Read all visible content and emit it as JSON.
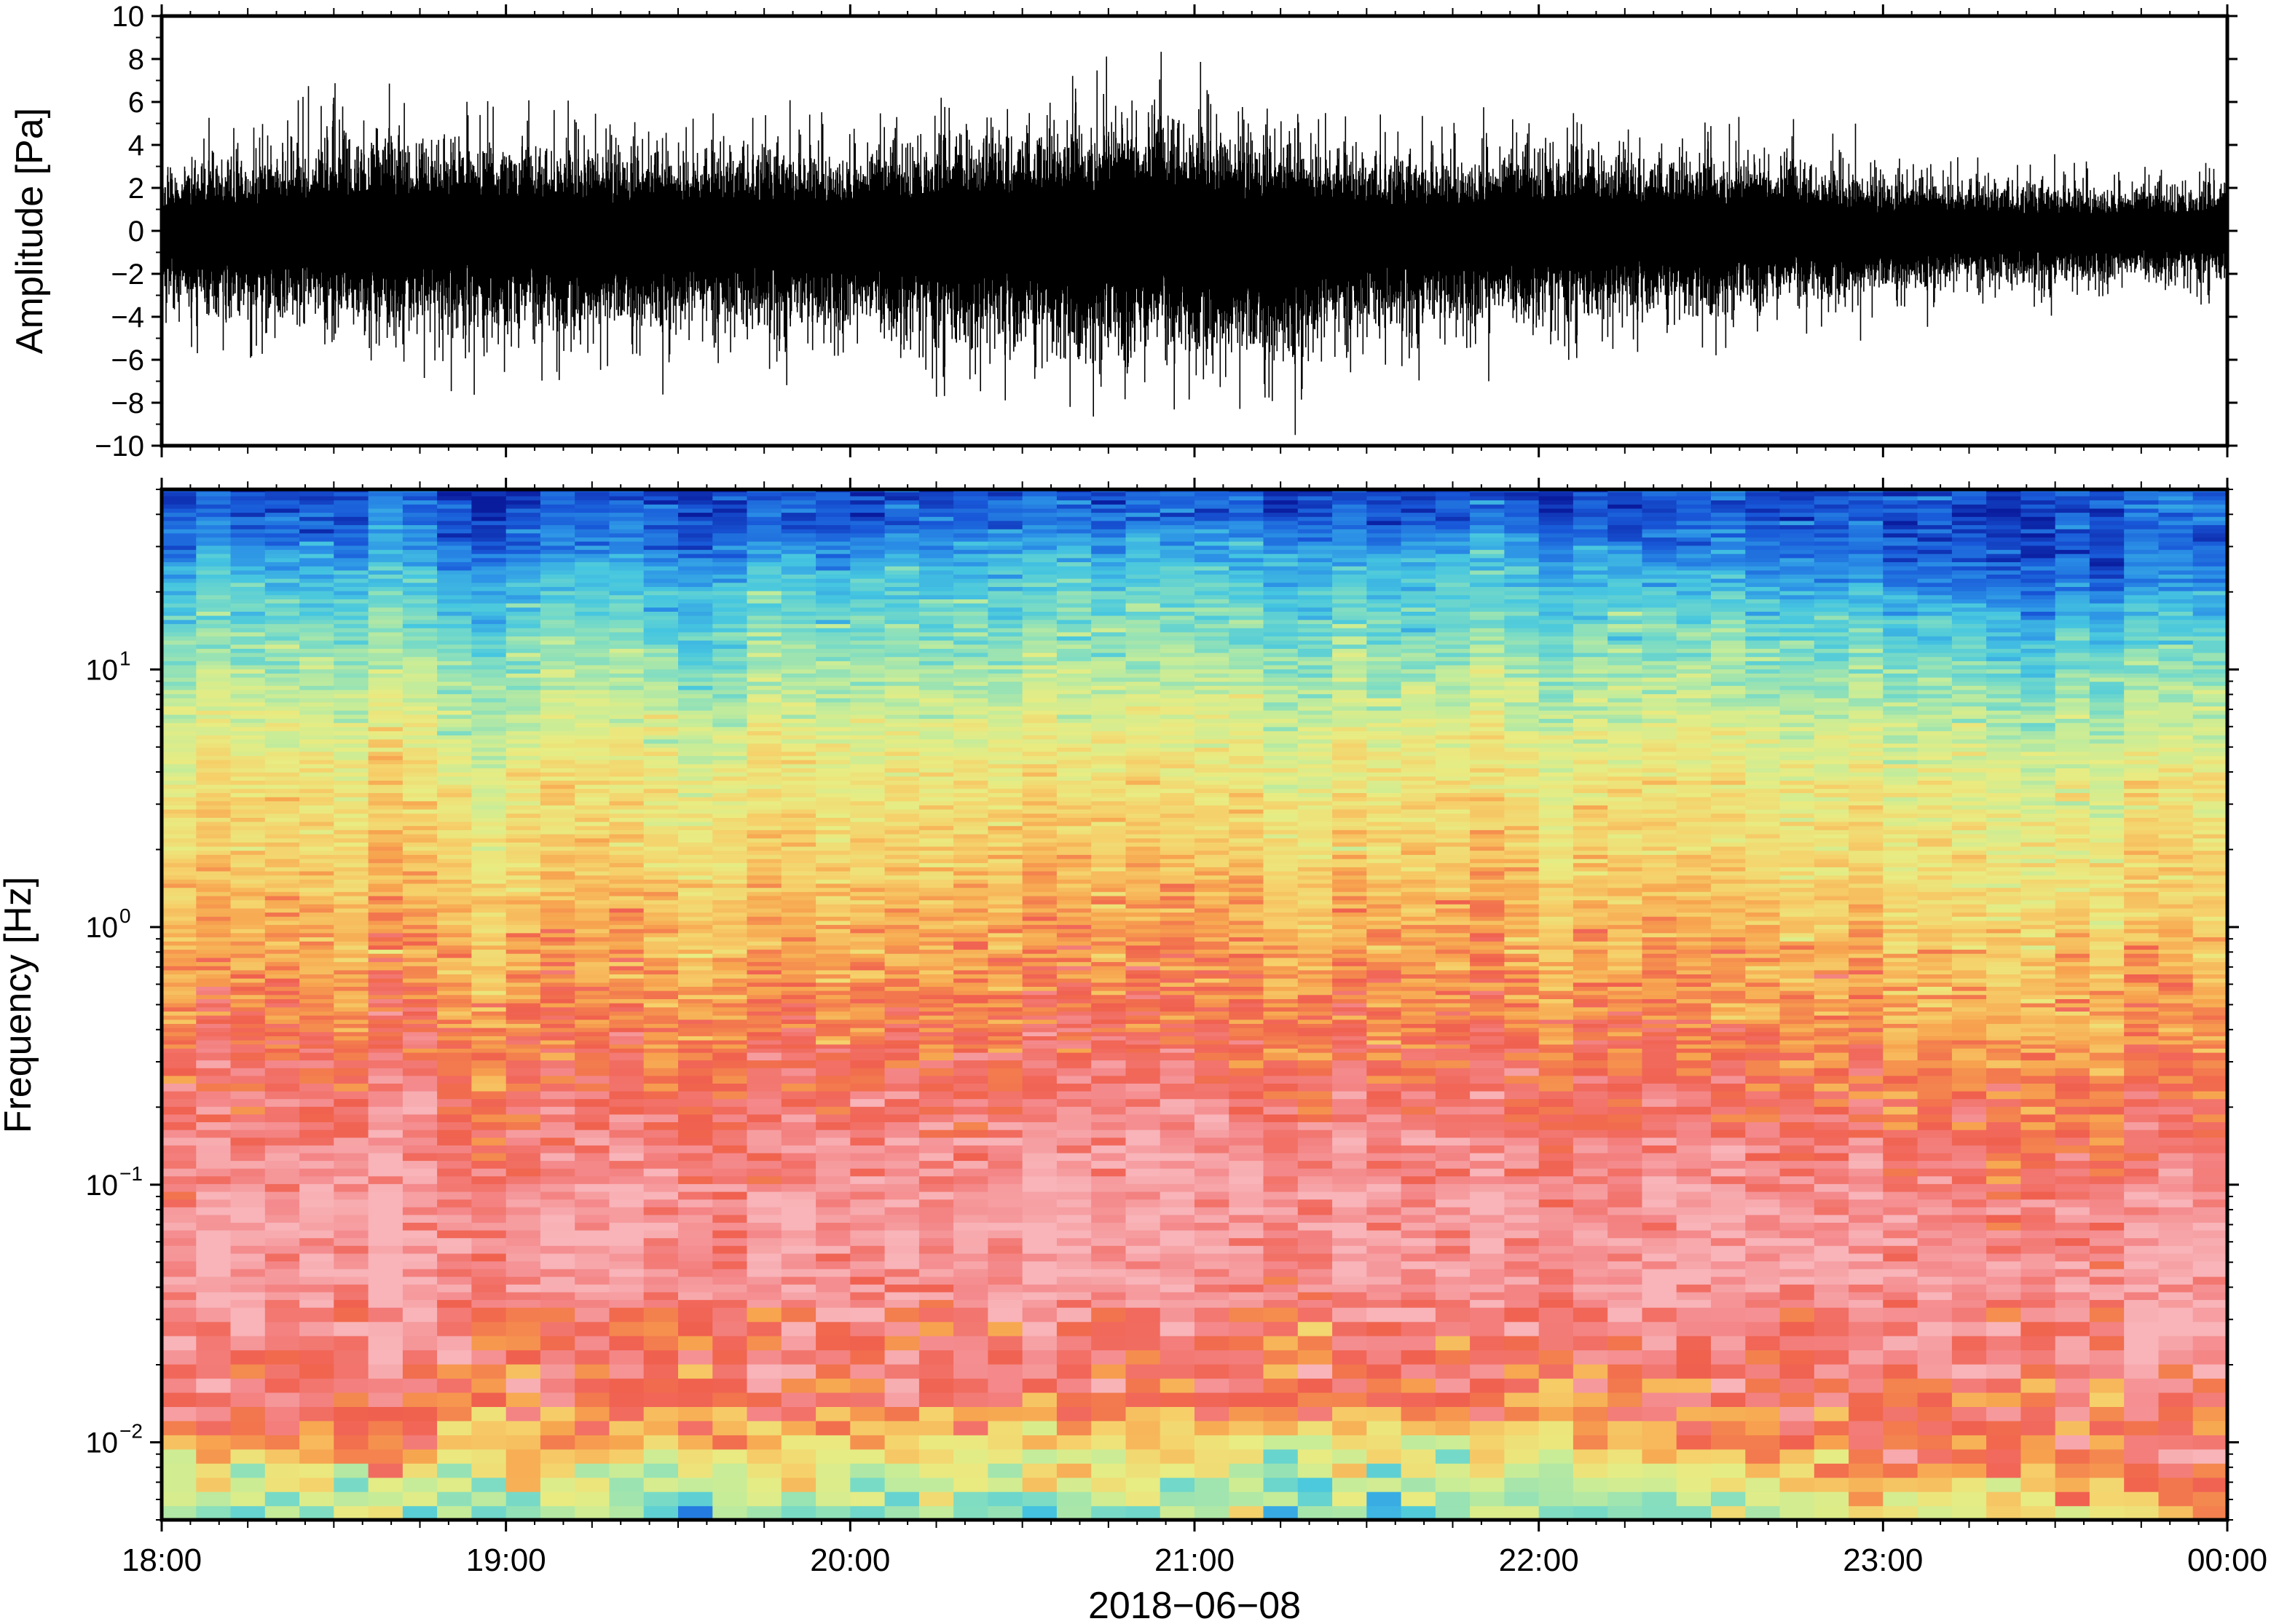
{
  "chart_data": [
    {
      "type": "line",
      "ylabel": "Amplitude [Pa]",
      "ylim": [
        -10,
        10
      ],
      "yticks": [
        10,
        8,
        6,
        4,
        2,
        0,
        -2,
        -4,
        -6,
        -8,
        -10
      ],
      "ytick_labels": [
        "10",
        "8",
        "6",
        "4",
        "2",
        "0",
        "−2",
        "−4",
        "−6",
        "−8",
        "−10"
      ],
      "x_range": [
        "2018-06-08T18:00",
        "2018-06-09T00:00"
      ],
      "grid": false,
      "series": [
        {
          "x": [
            "18:00",
            "18:15",
            "18:30",
            "18:45",
            "19:00",
            "19:15",
            "19:30",
            "19:45",
            "20:00",
            "20:15",
            "20:30",
            "20:45",
            "21:00",
            "21:15",
            "21:30",
            "21:45",
            "22:00",
            "22:15",
            "22:30",
            "22:45",
            "23:00",
            "23:15",
            "23:30",
            "23:45",
            "00:00"
          ],
          "envelope_max": [
            2.5,
            3,
            4,
            3.5,
            3.2,
            3.5,
            3,
            3.5,
            3.2,
            3.5,
            4,
            4.5,
            4.5,
            3.5,
            3,
            3,
            3.2,
            3,
            3,
            2.8,
            2.2,
            2,
            2,
            1.8,
            1.8
          ],
          "envelope_min": [
            -3,
            -3.5,
            -4,
            -4,
            -4.5,
            -4,
            -4,
            -4,
            -4,
            -4.5,
            -5,
            -5.5,
            -5,
            -5.5,
            -4,
            -3.8,
            -3.5,
            -3.5,
            -3.5,
            -3,
            -2.5,
            -2.2,
            -2.2,
            -2,
            -2
          ],
          "peaks_max": [
            5.2,
            5.5,
            5.8,
            5.9,
            5.0,
            4.8
          ],
          "peaks_min": [
            -5.8,
            -5.4,
            -7.3,
            -7.2,
            -5.8,
            -5.7
          ],
          "color": "#000000"
        }
      ]
    },
    {
      "type": "heatmap",
      "ylabel": "Frequency [Hz]",
      "xlabel": "2018−06−08",
      "y_scale": "log",
      "ylim": [
        0.005,
        50
      ],
      "yticks": [
        {
          "base": "10",
          "exp": "1",
          "value": 10
        },
        {
          "base": "10",
          "exp": "0",
          "value": 1
        },
        {
          "base": "10",
          "exp": "−1",
          "value": 0.1
        },
        {
          "base": "10",
          "exp": "−2",
          "value": 0.01
        }
      ],
      "xtick_labels": [
        "18:00",
        "19:00",
        "20:00",
        "21:00",
        "22:00",
        "23:00",
        "00:00"
      ],
      "colormap": [
        "#0a1c9e",
        "#1858d8",
        "#2b90e6",
        "#46c6e0",
        "#7cdcc4",
        "#c4ec9a",
        "#e8ec82",
        "#f6d06a",
        "#f7a44f",
        "#f0604e",
        "#f4888a",
        "#f8b4b8"
      ],
      "profile_log_freq": [
        -2.3,
        -2.1,
        -2.0,
        -1.85,
        -1.7,
        -1.45,
        -1.2,
        -0.9,
        -0.6,
        -0.4,
        -0.2,
        0.0,
        0.3,
        0.6,
        0.9,
        1.1,
        1.35,
        1.5,
        1.7
      ],
      "profile_color_index": [
        4.6,
        6.2,
        7.9,
        9.4,
        9.3,
        10.3,
        10.6,
        10.1,
        9.1,
        8.7,
        8.0,
        7.7,
        6.8,
        6.3,
        5.0,
        4.1,
        2.9,
        1.5,
        0.7
      ],
      "time_shift_by_hour": [
        0.0,
        0.0,
        0.2,
        0.4,
        0.3,
        -0.5,
        -0.9
      ]
    }
  ]
}
